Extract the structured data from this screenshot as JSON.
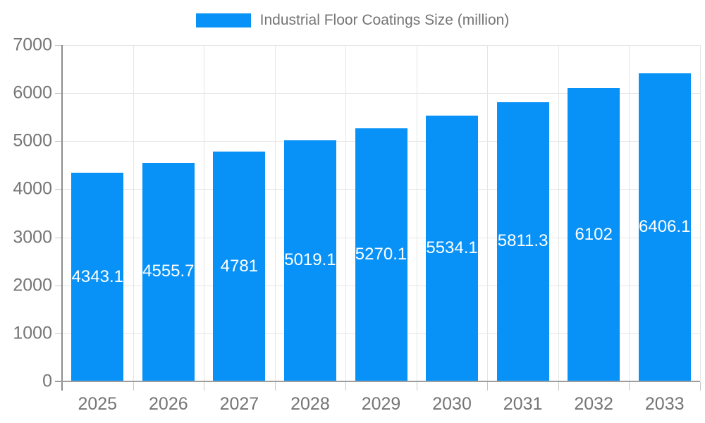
{
  "legend": {
    "label": "Industrial Floor Coatings Size (million)",
    "swatch_color": "#0892f8"
  },
  "chart_data": {
    "type": "bar",
    "title": "Industrial Floor Coatings Size (million)",
    "categories": [
      "2025",
      "2026",
      "2027",
      "2028",
      "2029",
      "2030",
      "2031",
      "2032",
      "2033"
    ],
    "values": [
      4343.1,
      4555.7,
      4781,
      5019.1,
      5270.1,
      5534.1,
      5811.3,
      6102,
      6406.1
    ],
    "value_labels": [
      "4343.1",
      "4555.7",
      "4781",
      "5019.1",
      "5270.1",
      "5534.1",
      "5811.3",
      "6102",
      "6406.1"
    ],
    "xlabel": "",
    "ylabel": "",
    "ylim": [
      0,
      7000
    ],
    "ytick_step": 1000,
    "ytick_labels": [
      "0",
      "1000",
      "2000",
      "3000",
      "4000",
      "5000",
      "6000",
      "7000"
    ],
    "grid": true,
    "legend_position": "top",
    "bar_color": "#0892f8",
    "value_label_color": "#ffffff",
    "axis_text_color": "#757575",
    "gridline_color": "#e6e6e6"
  }
}
